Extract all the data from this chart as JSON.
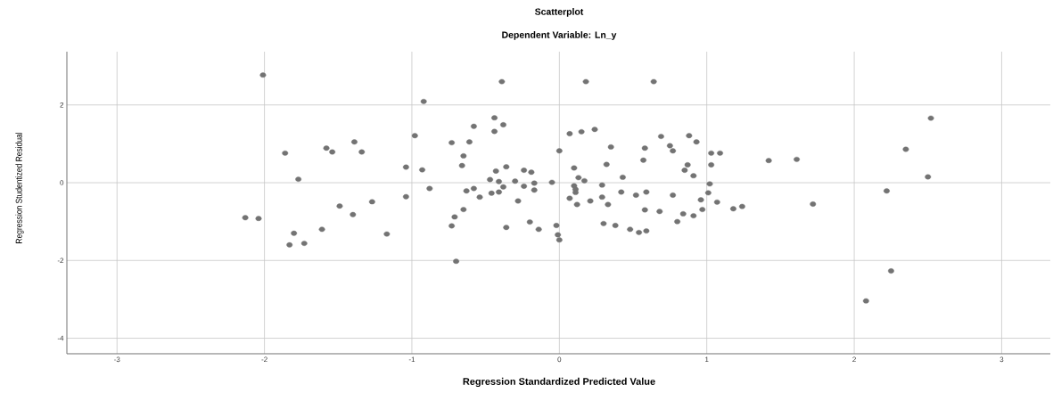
{
  "chart_data": {
    "type": "scatter",
    "title": "Scatterplot",
    "subtitle": "Dependent Variable: Ln_y",
    "xlabel": "Regression Standardized Predicted Value",
    "ylabel": "Regression Studentized Residual",
    "color": "#737373",
    "marker": "circle",
    "grid": true,
    "xlim": [
      -3.34,
      3.33
    ],
    "ylim": [
      -4.4,
      3.37
    ],
    "xticks": [
      -3,
      -2,
      -1,
      0,
      1,
      2,
      3
    ],
    "yticks": [
      -4,
      -2,
      0,
      2
    ],
    "x": [
      -2.01,
      -1.86,
      -1.58,
      -1.54,
      -1.39,
      -1.34,
      -1.04,
      -1.77,
      -2.13,
      -2.04,
      -1.8,
      -1.83,
      -1.73,
      -1.61,
      -1.49,
      -1.4,
      -1.27,
      -1.17,
      -1.04,
      -0.92,
      -0.39,
      0.18,
      0.64,
      -0.98,
      -0.44,
      -0.38,
      -0.58,
      -0.44,
      -0.73,
      -0.61,
      -0.65,
      -0.66,
      -0.93,
      -0.43,
      -0.36,
      -0.24,
      -0.19,
      -0.47,
      -0.41,
      -0.3,
      -0.17,
      -0.05,
      0.0,
      0.07,
      0.15,
      0.24,
      0.35,
      0.1,
      0.13,
      0.17,
      0.32,
      0.43,
      0.58,
      0.57,
      0.69,
      0.75,
      0.77,
      0.88,
      0.93,
      0.87,
      0.85,
      0.91,
      1.03,
      1.09,
      1.03,
      -0.88,
      -0.63,
      -0.58,
      -0.54,
      -0.46,
      -0.41,
      -0.38,
      -0.24,
      -0.17,
      -0.28,
      -0.65,
      -0.71,
      -0.73,
      -0.36,
      -0.2,
      -0.14,
      -0.02,
      -0.01,
      0.0,
      -0.7,
      0.1,
      0.11,
      0.11,
      0.07,
      0.12,
      0.21,
      0.29,
      0.29,
      0.33,
      0.42,
      0.52,
      0.59,
      0.58,
      0.68,
      0.3,
      0.38,
      0.48,
      0.54,
      0.59,
      0.77,
      0.8,
      0.84,
      0.91,
      0.96,
      0.97,
      1.02,
      1.01,
      1.07,
      2.52,
      2.35,
      2.5,
      2.22,
      1.42,
      1.61,
      1.18,
      1.24,
      1.72,
      2.25,
      2.08
    ],
    "values": [
      2.77,
      0.76,
      0.89,
      0.79,
      1.05,
      0.79,
      0.4,
      0.09,
      -0.9,
      -0.92,
      -1.3,
      -1.6,
      -1.56,
      -1.2,
      -0.6,
      -0.82,
      -0.49,
      -1.32,
      -0.36,
      2.09,
      2.6,
      2.6,
      2.6,
      1.21,
      1.67,
      1.49,
      1.45,
      1.32,
      1.03,
      1.05,
      0.69,
      0.44,
      0.33,
      0.3,
      0.41,
      0.32,
      0.27,
      0.08,
      0.03,
      0.04,
      -0.01,
      0.01,
      0.82,
      1.26,
      1.31,
      1.37,
      0.92,
      0.38,
      0.13,
      0.05,
      0.47,
      0.14,
      0.89,
      0.58,
      1.19,
      0.95,
      0.82,
      1.21,
      1.05,
      0.46,
      0.32,
      0.18,
      0.76,
      0.76,
      0.46,
      -0.15,
      -0.21,
      -0.15,
      -0.37,
      -0.27,
      -0.24,
      -0.11,
      -0.09,
      -0.19,
      -0.47,
      -0.69,
      -0.88,
      -1.11,
      -1.15,
      -1.01,
      -1.2,
      -1.1,
      -1.34,
      -1.47,
      -2.02,
      -0.08,
      -0.17,
      -0.25,
      -0.4,
      -0.56,
      -0.47,
      -0.37,
      -0.06,
      -0.56,
      -0.24,
      -0.32,
      -0.24,
      -0.7,
      -0.74,
      -1.05,
      -1.1,
      -1.2,
      -1.28,
      -1.24,
      -0.32,
      -1.0,
      -0.8,
      -0.85,
      -0.44,
      -0.69,
      -0.03,
      -0.26,
      -0.5,
      1.66,
      0.86,
      0.15,
      -0.21,
      0.57,
      0.6,
      -0.67,
      -0.61,
      -0.55,
      -2.27,
      -3.04
    ]
  }
}
